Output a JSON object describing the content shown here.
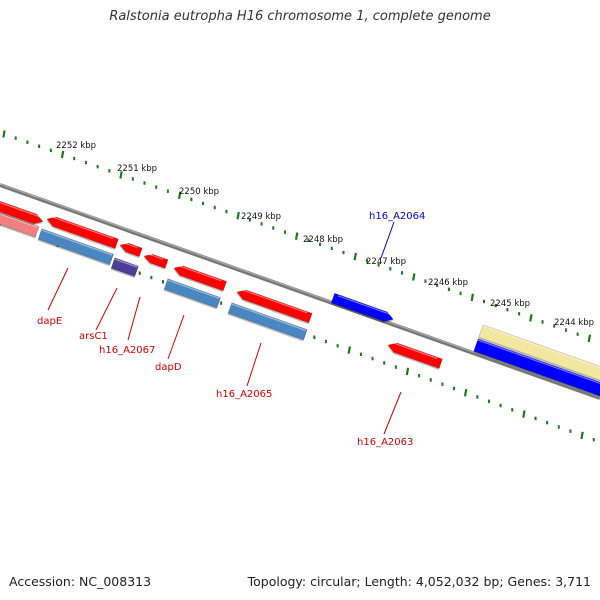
{
  "title": "Ralstonia eutropha H16 chromosome 1, complete genome",
  "footer": {
    "accession": "Accession: NC_008313",
    "summary": "Topology: circular; Length: 4,052,032 bp; Genes: 3,711"
  },
  "tick_labels": [
    "2252 kbp",
    "2251 kbp",
    "2250 kbp",
    "2249 kbp",
    "2248 kbp",
    "2247 kbp",
    "2246 kbp",
    "2245 kbp",
    "2244 kbp"
  ],
  "gene_labels": [
    {
      "text": "dapE",
      "color": "#cc0000"
    },
    {
      "text": "arsC1",
      "color": "#cc0000"
    },
    {
      "text": "h16_A2067",
      "color": "#cc0000"
    },
    {
      "text": "dapD",
      "color": "#cc0000"
    },
    {
      "text": "h16_A2065",
      "color": "#cc0000"
    },
    {
      "text": "h16_A2064",
      "color": "#0000cc"
    },
    {
      "text": "h16_A2063",
      "color": "#cc0000"
    }
  ],
  "colors": {
    "cds_red": "#ff0000",
    "cds_blue": "#0000ff",
    "rna_steel": "#4a87c0",
    "rna_purple": "#4b3f99",
    "pink": "#f08080",
    "yellow": "#f2e7a0",
    "backbone": "#888888",
    "tick": "#1a7a1a"
  }
}
